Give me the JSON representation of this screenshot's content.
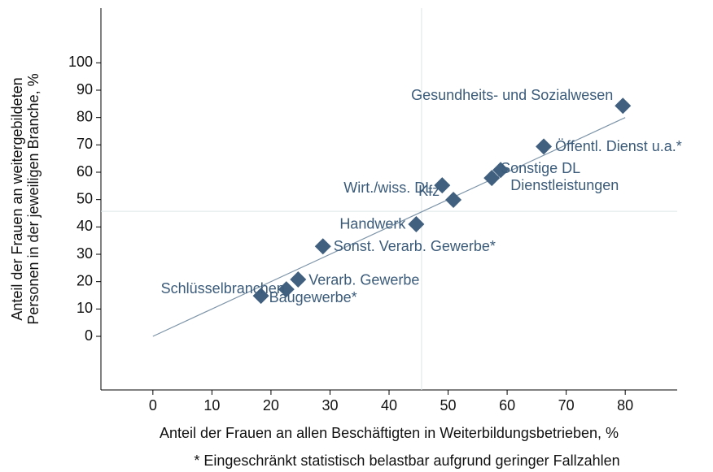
{
  "chart_data": {
    "type": "scatter",
    "xlabel": "Anteil der Frauen an allen Beschäftigten in Weiterbildungsbetrieben, %",
    "ylabel": [
      "Anteil der Frauen an weitergebildeten",
      "Personen in der jeweiligen Branche, %"
    ],
    "footnote": "* Eingeschränkt statistisch belastbar aufgrund geringer Fallzahlen",
    "color": "#41607f",
    "labels": [
      "Gesundheits- und Sozialwesen",
      "Öffentl. Dienst u.a.*",
      "Sonstige DL",
      "Dienstleistungen",
      "Wirt./wiss. DL",
      "Kfz",
      "Handwerk",
      "Sonst. Verarb. Gewerbe*",
      "Verarb. Gewerbe",
      "Schlüsselbranchen",
      "Baugewerbe*"
    ],
    "x": [
      79.6,
      66.2,
      58.9,
      57.4,
      49.0,
      50.9,
      44.6,
      28.8,
      24.6,
      22.6,
      18.3
    ],
    "y": [
      84.3,
      69.4,
      60.8,
      57.9,
      55.2,
      49.9,
      41.0,
      32.9,
      20.8,
      17.2,
      14.8
    ],
    "fit_line": {
      "x": [
        0,
        80
      ],
      "y": [
        0,
        80
      ]
    },
    "xref": 45.5,
    "yref": 45.7,
    "xlim": [
      -8.8,
      88.8
    ],
    "ylim": [
      -19.6,
      120
    ],
    "xticks": [
      0,
      10,
      20,
      30,
      40,
      50,
      60,
      70,
      80
    ],
    "yticks": [
      0,
      10,
      20,
      30,
      40,
      50,
      60,
      70,
      80,
      90,
      100
    ]
  }
}
